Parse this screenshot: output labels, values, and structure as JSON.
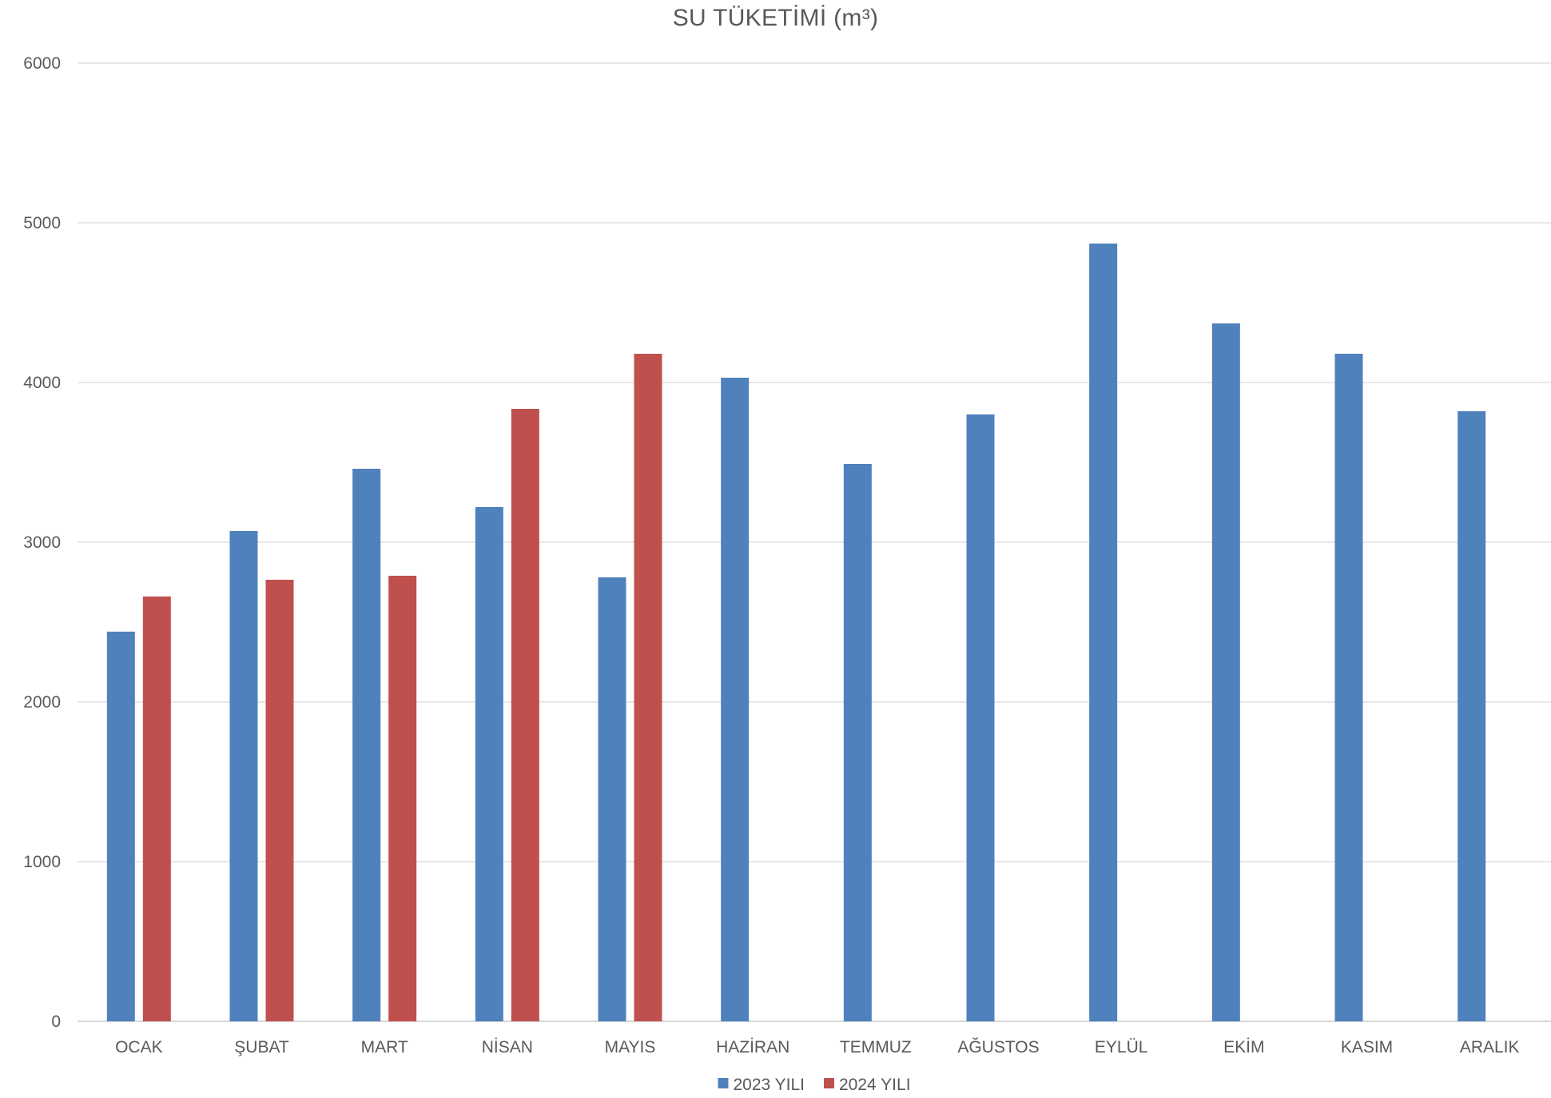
{
  "chart_data": {
    "type": "bar",
    "title": "SU TÜKETİMİ (m³)",
    "xlabel": "",
    "ylabel": "",
    "ylim": [
      0,
      6000
    ],
    "yticks": [
      0,
      1000,
      2000,
      3000,
      4000,
      5000,
      6000
    ],
    "grid": true,
    "legend_position": "bottom",
    "categories": [
      "OCAK",
      "ŞUBAT",
      "MART",
      "NİSAN",
      "MAYIS",
      "HAZİRAN",
      "TEMMUZ",
      "AĞUSTOS",
      "EYLÜL",
      "EKİM",
      "KASIM",
      "ARALIK"
    ],
    "series": [
      {
        "name": "2023 YILI",
        "color": "#4F81BD",
        "values": [
          2440,
          3070,
          3460,
          3220,
          2780,
          4030,
          3490,
          3800,
          4870,
          4370,
          4180,
          3820
        ]
      },
      {
        "name": "2024 YILI",
        "color": "#C0504D",
        "values": [
          2660,
          2765,
          2790,
          3835,
          4180,
          null,
          null,
          null,
          null,
          null,
          null,
          null
        ]
      }
    ]
  }
}
